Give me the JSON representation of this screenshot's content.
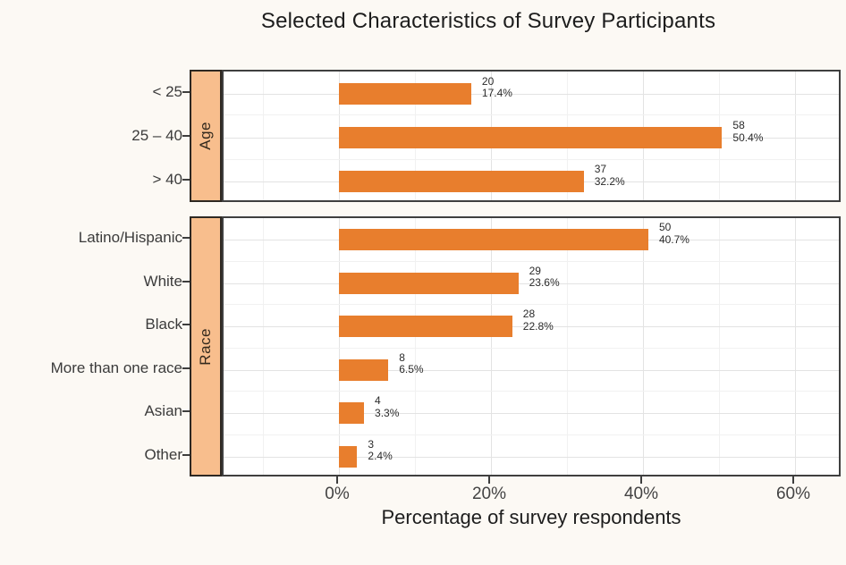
{
  "chart_data": {
    "type": "bar",
    "orientation": "horizontal",
    "title": "Selected Characteristics of Survey Participants",
    "xlabel": "Percentage of survey respondents",
    "x_ticks": [
      "0%",
      "20%",
      "40%",
      "60%"
    ],
    "x_tick_values": [
      0,
      20,
      40,
      60
    ],
    "x_minor_values": [
      -10,
      10,
      30,
      50
    ],
    "xlim": [
      -15.2,
      66.2
    ],
    "grid": true,
    "legend": "none",
    "panels": [
      {
        "group": "Age",
        "categories": [
          "< 25",
          "25 – 40",
          "> 40"
        ],
        "counts": [
          20,
          58,
          37
        ],
        "percents": [
          17.4,
          50.4,
          32.2
        ],
        "percent_labels": [
          "17.4%",
          "50.4%",
          "32.2%"
        ]
      },
      {
        "group": "Race",
        "categories": [
          "Latino/Hispanic",
          "White",
          "Black",
          "More than one race",
          "Asian",
          "Other"
        ],
        "counts": [
          50,
          29,
          28,
          8,
          4,
          3
        ],
        "percents": [
          40.7,
          23.6,
          22.8,
          6.5,
          3.3,
          2.4
        ],
        "percent_labels": [
          "40.7%",
          "23.6%",
          "22.8%",
          "6.5%",
          "3.3%",
          "2.4%"
        ]
      }
    ],
    "colors": {
      "bar": "#E87E2D",
      "strip_fill": "#F8BE8D",
      "strip_border": "#2E2822",
      "panel_border": "#3F3F3F",
      "panel_bg": "#FFFFFF",
      "page_bg": "#FCF9F4",
      "grid_major": "#E3E3E3",
      "grid_minor": "#F1F1F1",
      "tick": "#3D3D3D",
      "text_dark": "#1D1D1D",
      "text_gray": "#3B3B3B",
      "value_text": "#2A2A2A"
    }
  }
}
